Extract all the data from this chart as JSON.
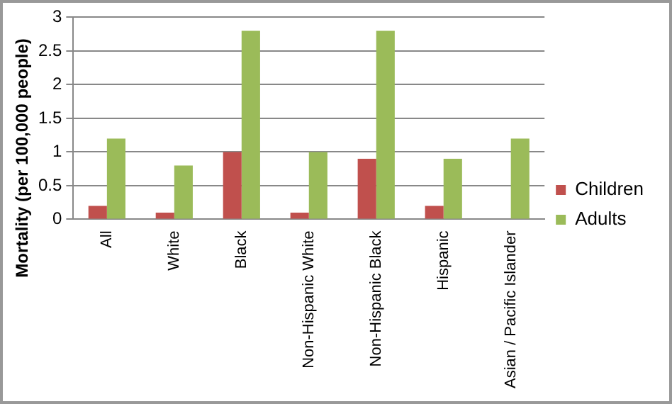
{
  "chart_data": {
    "type": "bar",
    "ylabel": "Mortality (per 100,000 people)",
    "categories": [
      "All",
      "White",
      "Black",
      "Non-Hispanic White",
      "Non-Hispanic Black",
      "Hispanic",
      "Asian / Pacific Islander"
    ],
    "series": [
      {
        "name": "Children",
        "color": "#c0504d",
        "values": [
          0.2,
          0.1,
          1,
          0.1,
          0.9,
          0.2,
          null
        ]
      },
      {
        "name": "Adults",
        "color": "#9bbb59",
        "values": [
          1.2,
          0.8,
          2.8,
          1,
          2.8,
          0.9,
          1.2
        ]
      }
    ],
    "ylim": [
      0,
      3
    ],
    "yticks": [
      0,
      0.5,
      1,
      1.5,
      2,
      2.5,
      3
    ],
    "grid": "y",
    "legend": "right"
  }
}
